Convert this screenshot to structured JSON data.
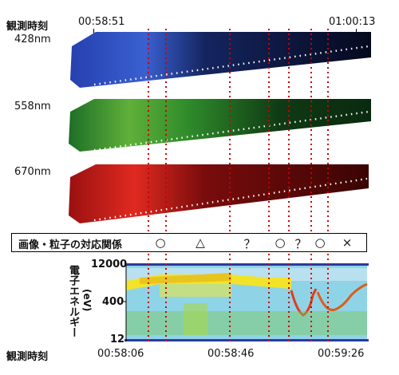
{
  "top_axis": {
    "label": "観測時刻",
    "start": "00:58:51",
    "end": "01:00:13"
  },
  "bands": [
    {
      "wavelength": "428nm",
      "color": "#1f3a9a"
    },
    {
      "wavelength": "558nm",
      "color": "#1e7a28"
    },
    {
      "wavelength": "670nm",
      "color": "#9a1010"
    }
  ],
  "relation_row": {
    "title": "画像・粒子の対応関係",
    "symbols": [
      "○",
      "△",
      "？",
      "○",
      "？",
      "○",
      "×"
    ]
  },
  "spectrogram": {
    "ylabel": "電子エネルギー",
    "yunit": "(eV)",
    "yticks": [
      "12000",
      "400",
      "12"
    ]
  },
  "bottom_axis": {
    "label": "観測時刻",
    "ticks": [
      "00:58:06",
      "00:58:46",
      "00:59:26"
    ]
  },
  "colors": {
    "marker_line": "#cc0000",
    "spectrogram_border": "#2a3aa0"
  }
}
